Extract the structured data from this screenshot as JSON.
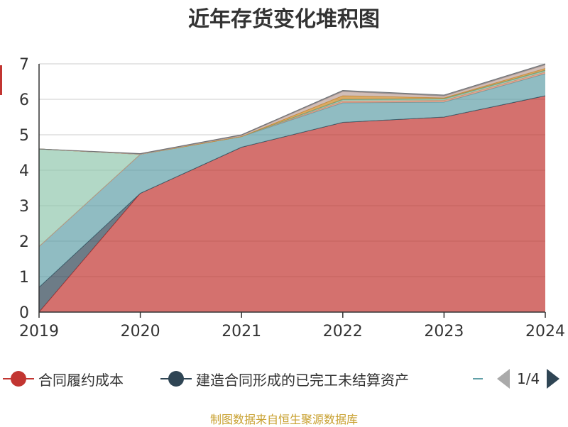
{
  "title": "近年存货变化堆积图",
  "source": "制图数据来自恒生聚源数据库",
  "colors": {
    "accent_ylabel": "#c23531",
    "grid": "#cccccc",
    "axis": "#333333"
  },
  "legend": {
    "items": [
      {
        "label": "合同履约成本",
        "color": "#c23531"
      },
      {
        "label": "建造合同形成的已完工未结算资产",
        "color": "#2f4554"
      }
    ],
    "page": "1/4"
  },
  "chart_data": {
    "type": "area",
    "stacked": true,
    "x": [
      "2019",
      "2020",
      "2021",
      "2022",
      "2023",
      "2024"
    ],
    "ylim": [
      0,
      7
    ],
    "yticks": [
      "0",
      "1",
      "2",
      "3",
      "4",
      "5",
      "6",
      "7"
    ],
    "grid": true,
    "legend_position": "bottom",
    "series": [
      {
        "name": "合同履约成本",
        "color": "#c23531",
        "values": [
          0.0,
          3.35,
          4.65,
          5.35,
          5.5,
          6.1
        ]
      },
      {
        "name": "建造合同形成的已完工未结算资产",
        "color": "#2f4554",
        "values": [
          0.7,
          0.0,
          0.0,
          0.0,
          0.0,
          0.0
        ]
      },
      {
        "color": "#61a0a8",
        "values": [
          1.15,
          1.1,
          0.3,
          0.55,
          0.42,
          0.62
        ]
      },
      {
        "color": "#d48265",
        "values": [
          0.0,
          0.0,
          0.0,
          0.05,
          0.05,
          0.05
        ]
      },
      {
        "color": "#91c7ae",
        "values": [
          2.75,
          0.0,
          0.0,
          0.03,
          0.03,
          0.03
        ]
      },
      {
        "color": "#749f83",
        "values": [
          0.0,
          0.0,
          0.0,
          0.02,
          0.02,
          0.02
        ]
      },
      {
        "color": "#ca8622",
        "values": [
          0.0,
          0.0,
          0.0,
          0.1,
          0.02,
          0.05
        ]
      },
      {
        "color": "#bda29a",
        "values": [
          0.0,
          0.0,
          0.03,
          0.12,
          0.05,
          0.1
        ]
      },
      {
        "color": "#6e7074",
        "values": [
          0.0,
          0.02,
          0.02,
          0.03,
          0.03,
          0.03
        ]
      }
    ]
  }
}
